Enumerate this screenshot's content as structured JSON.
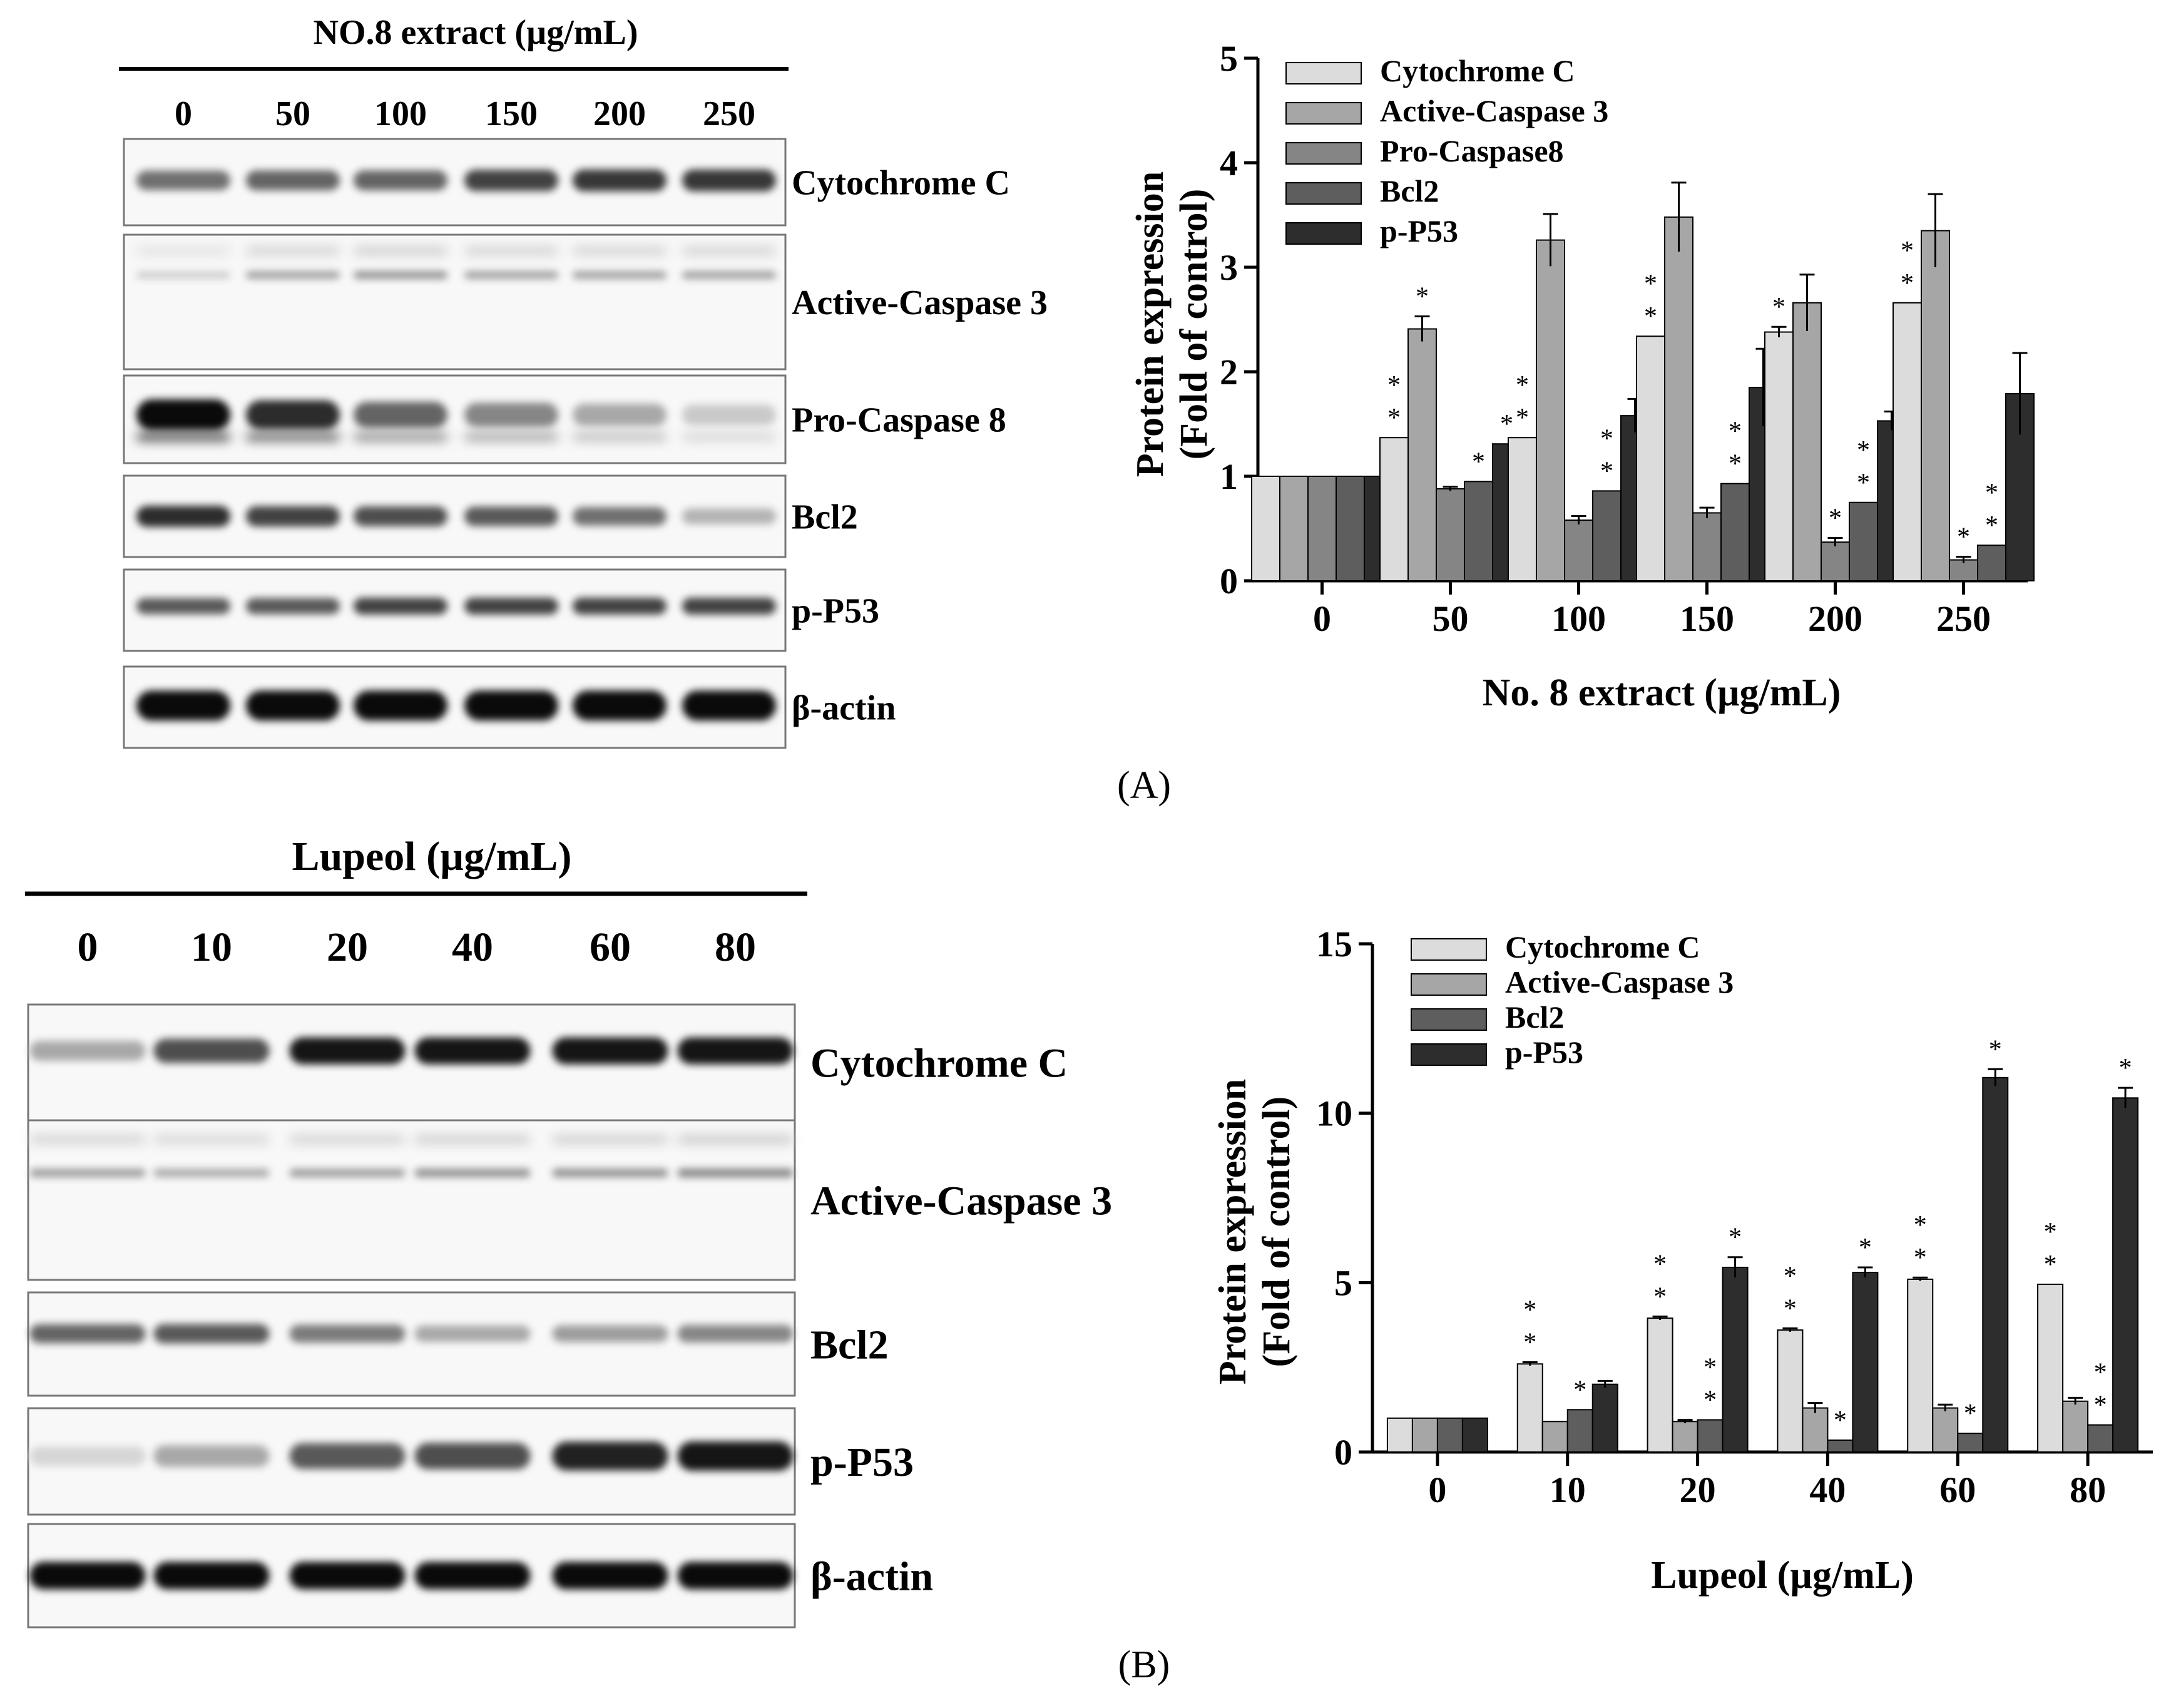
{
  "panel_a": {
    "blot": {
      "title": "NO.8 extract (µg/mL)",
      "lanes": [
        "0",
        "50",
        "100",
        "150",
        "200",
        "250"
      ],
      "rows": [
        {
          "label": "Cytochrome C",
          "intensity": [
            0.55,
            0.6,
            0.6,
            0.75,
            0.8,
            0.8
          ]
        },
        {
          "label": "Active-Caspase 3",
          "intensity": [
            0.15,
            0.35,
            0.4,
            0.35,
            0.35,
            0.35
          ]
        },
        {
          "label": "Pro-Caspase 8",
          "intensity": [
            1.0,
            0.85,
            0.6,
            0.45,
            0.3,
            0.15
          ]
        },
        {
          "label": "Bcl2",
          "intensity": [
            0.85,
            0.75,
            0.7,
            0.65,
            0.55,
            0.25
          ]
        },
        {
          "label": "p-P53",
          "intensity": [
            0.65,
            0.65,
            0.75,
            0.75,
            0.75,
            0.75
          ]
        },
        {
          "label": "β-actin",
          "intensity": [
            1.0,
            1.0,
            1.0,
            1.0,
            1.0,
            1.0
          ]
        }
      ]
    },
    "panel_label": "(A)"
  },
  "panel_b": {
    "blot": {
      "title": "Lupeol (µg/mL)",
      "lanes": [
        "0",
        "10",
        "20",
        "40",
        "60",
        "80"
      ],
      "rows": [
        {
          "label": "Cytochrome C",
          "intensity": [
            0.3,
            0.7,
            0.95,
            0.95,
            0.95,
            0.95
          ]
        },
        {
          "label": "Active-Caspase 3",
          "intensity": [
            0.35,
            0.3,
            0.35,
            0.4,
            0.4,
            0.45
          ]
        },
        {
          "label": "Bcl2",
          "intensity": [
            0.6,
            0.65,
            0.5,
            0.3,
            0.35,
            0.45
          ]
        },
        {
          "label": "p-P53",
          "intensity": [
            0.1,
            0.3,
            0.65,
            0.7,
            0.9,
            0.95
          ]
        },
        {
          "label": "β-actin",
          "intensity": [
            1.0,
            1.0,
            1.0,
            1.0,
            1.0,
            1.0
          ]
        }
      ]
    },
    "panel_label": "(B)"
  },
  "chart_data": [
    {
      "type": "bar",
      "title": "",
      "xlabel": "No. 8 extract (µg/mL)",
      "ylabel": [
        "Protein expression",
        "(Fold of control)"
      ],
      "categories": [
        "0",
        "50",
        "100",
        "150",
        "200",
        "250"
      ],
      "ylim": [
        0,
        5
      ],
      "yticks": [
        "0",
        "1",
        "2",
        "3",
        "4",
        "5"
      ],
      "legend_position": "top-left",
      "series": [
        {
          "name": "Cytochrome C",
          "color": "#dcdcdc",
          "values": [
            1.0,
            1.37,
            1.37,
            2.34,
            2.38,
            2.66
          ],
          "errors": [
            0,
            0,
            0,
            0,
            0.05,
            0
          ],
          "sig": [
            "",
            "* *",
            "* *",
            "* *",
            "*",
            "* *"
          ]
        },
        {
          "name": "Active-Caspase 3",
          "color": "#a6a6a6",
          "values": [
            1.0,
            2.41,
            3.26,
            3.48,
            2.66,
            3.35
          ],
          "errors": [
            0,
            0.12,
            0.25,
            0.33,
            0.27,
            0.35
          ],
          "sig": [
            "",
            "*",
            "",
            "",
            "",
            ""
          ]
        },
        {
          "name": "Pro-Caspase8",
          "color": "#858585",
          "values": [
            1.0,
            0.88,
            0.58,
            0.65,
            0.37,
            0.2
          ],
          "errors": [
            0,
            0.02,
            0.04,
            0.05,
            0.04,
            0.03
          ],
          "sig": [
            "",
            "",
            "",
            "",
            "*",
            "*"
          ]
        },
        {
          "name": "Bcl2",
          "color": "#5e5e5e",
          "values": [
            1.0,
            0.95,
            0.86,
            0.93,
            0.75,
            0.34
          ],
          "errors": [
            0,
            0,
            0,
            0,
            0,
            0
          ],
          "sig": [
            "",
            "*",
            "* *",
            "* *",
            "* *",
            "* *"
          ]
        },
        {
          "name": "p-P53",
          "color": "#2d2d2d",
          "values": [
            1.0,
            1.31,
            1.58,
            1.85,
            1.53,
            1.79
          ],
          "errors": [
            0,
            0,
            0.16,
            0.37,
            0.09,
            0.39
          ],
          "sig": [
            "",
            "*",
            "",
            "",
            "",
            ""
          ]
        }
      ]
    },
    {
      "type": "bar",
      "title": "",
      "xlabel": "Lupeol (µg/mL)",
      "ylabel": [
        "Protein expression",
        "(Fold of control)"
      ],
      "categories": [
        "0",
        "10",
        "20",
        "40",
        "60",
        "80"
      ],
      "ylim": [
        0,
        15
      ],
      "yticks": [
        "0",
        "5",
        "10",
        "15"
      ],
      "legend_position": "top-left",
      "series": [
        {
          "name": "Cytochrome C",
          "color": "#dcdcdc",
          "values": [
            1.0,
            2.6,
            3.95,
            3.6,
            5.1,
            4.95
          ],
          "errors": [
            0,
            0.05,
            0.05,
            0.05,
            0.05,
            0
          ],
          "sig": [
            "",
            "* *",
            "* *",
            "* *",
            "* *",
            "* *"
          ]
        },
        {
          "name": "Active-Caspase 3",
          "color": "#a6a6a6",
          "values": [
            1.0,
            0.9,
            0.9,
            1.3,
            1.3,
            1.5
          ],
          "errors": [
            0,
            0,
            0.05,
            0.15,
            0.1,
            0.1
          ],
          "sig": [
            "",
            "",
            "",
            "",
            "",
            ""
          ]
        },
        {
          "name": "Bcl2",
          "color": "#5e5e5e",
          "values": [
            1.0,
            1.25,
            0.95,
            0.35,
            0.55,
            0.8
          ],
          "errors": [
            0,
            0,
            0,
            0,
            0,
            0
          ],
          "sig": [
            "",
            "*",
            "* *",
            "*",
            "*",
            "* *"
          ]
        },
        {
          "name": "p-P53",
          "color": "#2d2d2d",
          "values": [
            1.0,
            2.0,
            5.45,
            5.3,
            11.05,
            10.45
          ],
          "errors": [
            0,
            0.1,
            0.3,
            0.15,
            0.25,
            0.3
          ],
          "sig": [
            "",
            "",
            "*",
            "*",
            "*",
            "*"
          ]
        }
      ]
    }
  ]
}
